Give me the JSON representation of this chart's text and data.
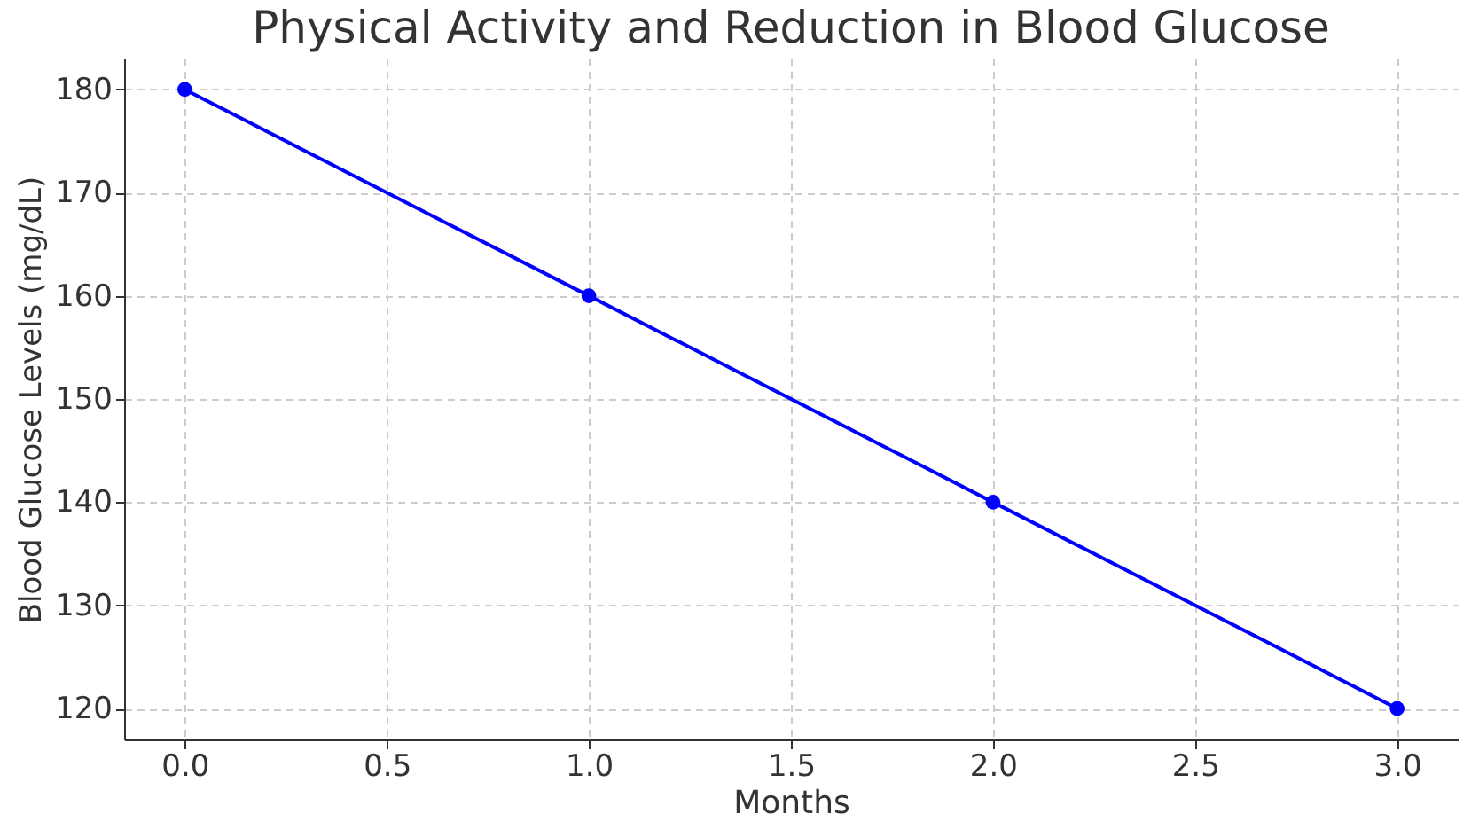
{
  "chart_data": {
    "type": "line",
    "title": "Physical Activity and Reduction in Blood Glucose",
    "xlabel": "Months",
    "ylabel": "Blood Glucose Levels (mg/dL)",
    "x": [
      0,
      1,
      2,
      3
    ],
    "series": [
      {
        "color": "#0000ff",
        "values": [
          180,
          160,
          140,
          120
        ]
      }
    ],
    "xlim": [
      -0.15,
      3.15
    ],
    "ylim": [
      117,
      183
    ],
    "xticks": [
      {
        "value": 0,
        "label": "0.0"
      },
      {
        "value": 0.5,
        "label": "0.5"
      },
      {
        "value": 1,
        "label": "1.0"
      },
      {
        "value": 1.5,
        "label": "1.5"
      },
      {
        "value": 2,
        "label": "2.0"
      },
      {
        "value": 2.5,
        "label": "2.5"
      },
      {
        "value": 3,
        "label": "3.0"
      }
    ],
    "yticks": [
      120,
      130,
      140,
      150,
      160,
      170,
      180
    ],
    "grid": true,
    "marker": "circle",
    "line_style": "solid"
  }
}
